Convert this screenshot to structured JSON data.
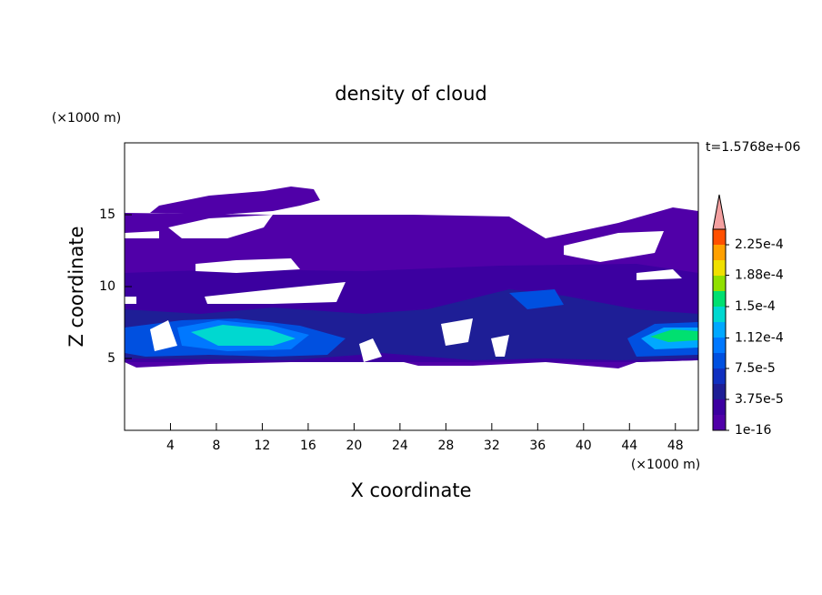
{
  "chart_data": {
    "type": "contour",
    "title": "density of cloud",
    "x_label": "X coordinate",
    "y_label": "Z coordinate",
    "x_unit": "(×1000 m)",
    "y_unit": "(×1000 m)",
    "annotation": "t=1.5768e+06",
    "xlim": [
      0,
      50
    ],
    "ylim": [
      0,
      20
    ],
    "xticks": [
      4,
      8,
      12,
      16,
      20,
      24,
      28,
      32,
      36,
      40,
      44,
      48
    ],
    "yticks": [
      5,
      10,
      15
    ],
    "colorbar": {
      "lim": [
        1e-16,
        0.00024375
      ],
      "ticks": [
        1e-16,
        {
          "value": 3.75e-05,
          "label": "3.75e-5"
        },
        {
          "value": 7.5e-05,
          "label": "7.5e-5"
        },
        {
          "value": 0.000112,
          "label": "1.12e-4"
        },
        {
          "value": 0.00015,
          "label": "1.5e-4"
        },
        {
          "value": 0.000188,
          "label": "1.88e-4"
        },
        {
          "value": 0.000225,
          "label": "2.25e-4"
        }
      ],
      "colors": [
        "#5000a8",
        "#3c00a0",
        "#1e1e96",
        "#1030c0",
        "#0050e0",
        "#0078ff",
        "#00a8ff",
        "#00d8d0",
        "#00e070",
        "#90e000",
        "#f0e000",
        "#ffa000",
        "#ff5000"
      ],
      "over_color": "#f4a0a0"
    }
  }
}
